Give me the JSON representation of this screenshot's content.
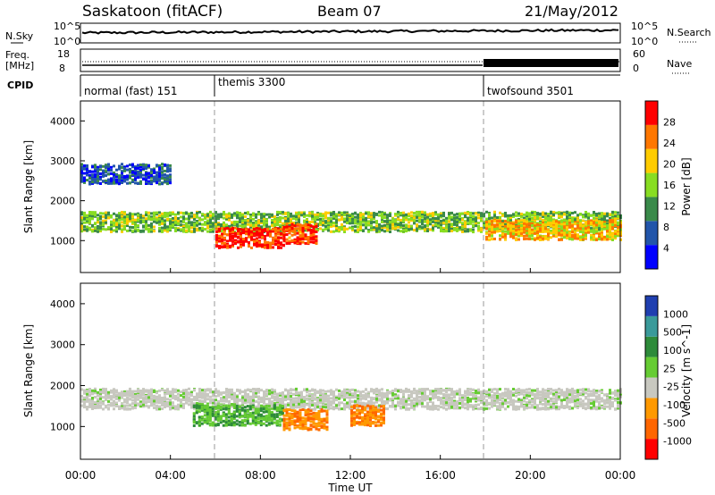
{
  "header": {
    "station": "Saskatoon (fitACF)",
    "beam": "Beam 07",
    "date": "21/May/2012"
  },
  "noise_panel": {
    "left_label": "N.Sky",
    "left_ticks": [
      "10^5",
      "10^0"
    ],
    "right_label": "N.Search",
    "right_ticks": [
      "10^5",
      "10^0"
    ]
  },
  "freq_panel": {
    "left_label_1": "Freq.",
    "left_label_2": "[MHz]",
    "left_ticks": [
      "18",
      "8"
    ],
    "right_label": "Nave",
    "right_ticks": [
      "60",
      "0"
    ]
  },
  "cpid": {
    "label": "CPID",
    "segments": [
      {
        "name": "normal (fast) 151",
        "start_hour": 0
      },
      {
        "name": "themis 3300",
        "start_hour": 6
      },
      {
        "name": "twofsound 3501",
        "start_hour": 18
      }
    ]
  },
  "power_panel": {
    "ylabel": "Slant Range [km]",
    "yticks": [
      "1000",
      "2000",
      "3000",
      "4000"
    ],
    "colorbar_label": "Power [dB]",
    "colorbar_ticks": [
      "4",
      "8",
      "12",
      "16",
      "20",
      "24",
      "28"
    ],
    "colors": [
      "#0000ff",
      "#2255aa",
      "#3a8a4a",
      "#88dd22",
      "#ffcc00",
      "#ff7700",
      "#ff0000"
    ]
  },
  "velocity_panel": {
    "ylabel": "Slant Range [km]",
    "yticks": [
      "1000",
      "2000",
      "3000",
      "4000"
    ],
    "colorbar_label": "Velocity [m s^-1]",
    "colorbar_ticks": [
      "1000",
      "500",
      "100",
      "25",
      "-25",
      "-100",
      "-500",
      "-1000"
    ],
    "colors": [
      "#1f3fb0",
      "#3a9a9a",
      "#2e8b3a",
      "#66cc33",
      "#c8c8c0",
      "#ff9900",
      "#ff6600",
      "#ff0000"
    ]
  },
  "xaxis": {
    "ticks": [
      "00:00",
      "04:00",
      "08:00",
      "12:00",
      "16:00",
      "20:00",
      "00:00"
    ],
    "label": "Time UT"
  },
  "chart_data": {
    "type": "heatmap",
    "title": "Saskatoon (fitACF) Beam 07 21/May/2012",
    "xlabel": "Time UT",
    "ylabel": "Slant Range [km]",
    "xlim": [
      0,
      24
    ],
    "ylim": [
      200,
      4500
    ],
    "mode_changes_hours": [
      6,
      18
    ],
    "power_bands": [
      {
        "t0": 0,
        "t1": 24,
        "range_km": 1500,
        "power_db": 14
      },
      {
        "t0": 6,
        "t1": 9,
        "range_km": 1100,
        "power_db": 28
      },
      {
        "t0": 9,
        "t1": 10.5,
        "range_km": 1200,
        "power_db": 26
      },
      {
        "t0": 0,
        "t1": 4,
        "range_km": 2700,
        "power_db": 6
      },
      {
        "t0": 18,
        "t1": 24,
        "range_km": 1300,
        "power_db": 20
      }
    ],
    "velocity_bands": [
      {
        "t0": 0,
        "t1": 24,
        "range_km": 1700,
        "velocity": 0
      },
      {
        "t0": 5,
        "t1": 9,
        "range_km": 1300,
        "velocity": 150
      },
      {
        "t0": 9,
        "t1": 11,
        "range_km": 1200,
        "velocity": -150
      },
      {
        "t0": 12,
        "t1": 13.5,
        "range_km": 1300,
        "velocity": -150
      }
    ]
  }
}
